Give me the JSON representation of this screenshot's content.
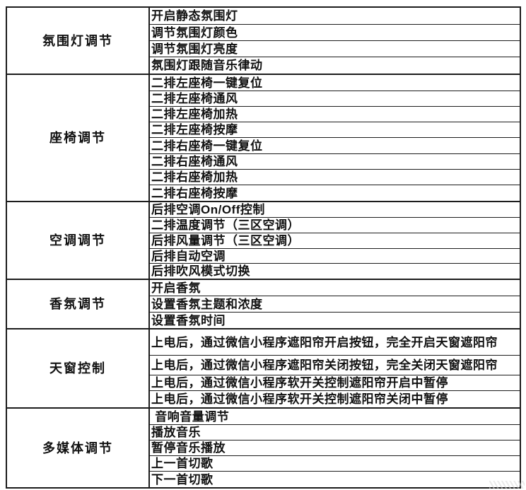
{
  "colors": {
    "border": "#1c1c1c",
    "text": "#111111",
    "background": "#ffffff"
  },
  "table": {
    "groups": [
      {
        "category": "氛围灯调节",
        "items": [
          "开启静态氛围灯",
          "调节氛围灯颜色",
          "调节氛围灯亮度",
          "氛围灯跟随音乐律动"
        ]
      },
      {
        "category": "座椅调节",
        "items": [
          "二排左座椅一键复位",
          "二排左座椅通风",
          "二排左座椅加热",
          "二排左座椅按摩",
          "二排右座椅一键复位",
          "二排右座椅通风",
          "二排右座椅加热",
          "二排右座椅按摩"
        ]
      },
      {
        "category": "空调调节",
        "items": [
          "后排空调On/Off控制",
          "二排温度调节（三区空调）",
          "后排风量调节（三区空调）",
          "后排自动空调",
          "后排吹风模式切换"
        ]
      },
      {
        "category": "香氛调节",
        "items": [
          "开启香氛",
          "设置香氛主题和浓度",
          "设置香氛时间"
        ]
      },
      {
        "category": "天窗控制",
        "items": [
          "上电后，通过微信小程序遮阳帘开启按钮，完全开启天窗遮阳帘",
          "上电后，通过微信小程序遮阳帘关闭按钮，完全关闭天窗遮阳帘",
          "上电后，通过微信小程序软开关控制遮阳帘开启中暂停",
          "上电后，通过微信小程序软开关控制遮阳帘关闭中暂停"
        ]
      },
      {
        "category": "多媒体调节",
        "items": [
          " 音响音量调节",
          "播放音乐",
          "暂停音乐播放",
          "上一首切歌",
          "下一首切歌"
        ]
      }
    ]
  }
}
